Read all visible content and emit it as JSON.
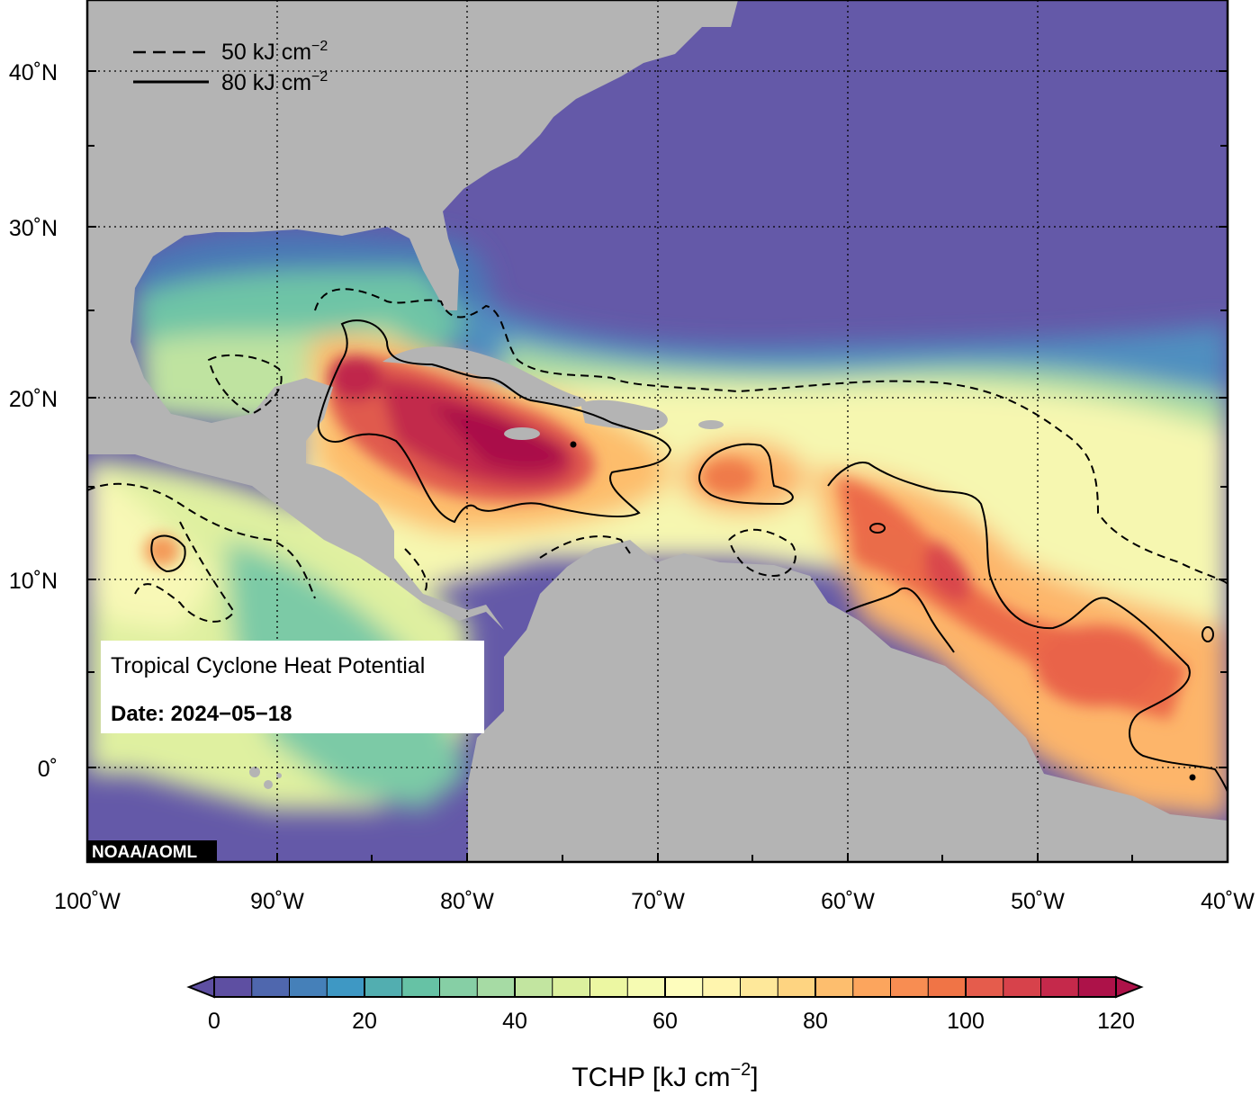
{
  "map": {
    "region": "Gulf of Mexico, Caribbean and Tropical Atlantic",
    "extent": {
      "lon": [
        -100,
        -40
      ],
      "lat": [
        -5,
        44
      ]
    },
    "lon_ticks": [
      "100˚W",
      "90˚W",
      "80˚W",
      "70˚W",
      "60˚W",
      "50˚W",
      "40˚W"
    ],
    "lat_ticks": [
      "40˚N",
      "30˚N",
      "20˚N",
      "10˚N",
      "0˚"
    ],
    "gridlines": true,
    "colors": {
      "land": "#b4b4b4",
      "cold_ocean": "#6459a8",
      "frame": "#000000"
    }
  },
  "legend": {
    "dashed_label": "50 kJ cm",
    "solid_label": "80 kJ cm",
    "superscript": "−2"
  },
  "info_box": {
    "title": "Tropical Cyclone Heat Potential",
    "date_label": "Date: 2024−05−18"
  },
  "credit": "NOAA/AOML",
  "colorbar": {
    "ticks": [
      "0",
      "20",
      "40",
      "60",
      "80",
      "100",
      "120"
    ],
    "min": 0,
    "max": 120,
    "step": 5,
    "title": "TCHP [kJ cm",
    "title_sup": "−2",
    "title_end": "]",
    "colors": [
      "#5e4fa2",
      "#4f67ae",
      "#4580b9",
      "#3e98c4",
      "#52aeb0",
      "#66c2a5",
      "#86cfa5",
      "#a6dba4",
      "#c2e5a0",
      "#dcf09e",
      "#ecf7a2",
      "#f6fbb2",
      "#fefdbd",
      "#fff5ae",
      "#fee89a",
      "#fed481",
      "#fdbe6e",
      "#fca55d",
      "#f88d52",
      "#f07446",
      "#e55c4c",
      "#d7424b",
      "#c5294b",
      "#ad1249"
    ]
  }
}
